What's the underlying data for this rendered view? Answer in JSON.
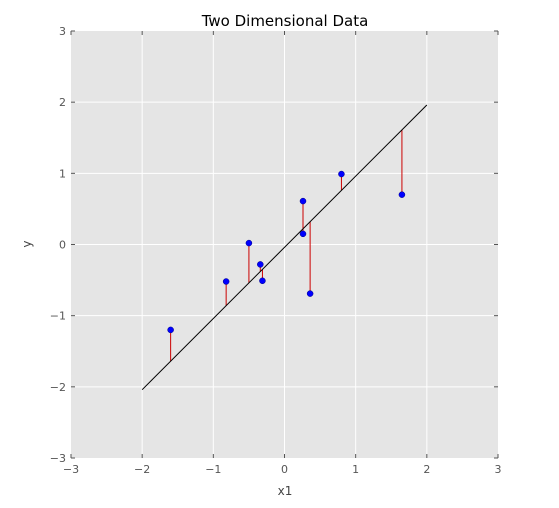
{
  "chart_data": {
    "type": "scatter",
    "title": "Two Dimensional Data",
    "xlabel": "x1",
    "ylabel": "y",
    "xlim": [
      -3,
      3
    ],
    "ylim": [
      -3,
      3
    ],
    "xticks": [
      -3,
      -2,
      -1,
      0,
      1,
      2,
      3
    ],
    "yticks": [
      -3,
      -2,
      -1,
      0,
      1,
      2,
      3
    ],
    "tick_labels_x": [
      "−3",
      "−2",
      "−1",
      "0",
      "1",
      "2",
      "3"
    ],
    "tick_labels_y": [
      "−3",
      "−2",
      "−1",
      "0",
      "1",
      "2",
      "3"
    ],
    "grid": true,
    "points": [
      {
        "x": -1.6,
        "y": -1.2
      },
      {
        "x": -0.82,
        "y": -0.52
      },
      {
        "x": -0.5,
        "y": 0.02
      },
      {
        "x": -0.34,
        "y": -0.28
      },
      {
        "x": -0.31,
        "y": -0.51
      },
      {
        "x": 0.26,
        "y": 0.61
      },
      {
        "x": 0.26,
        "y": 0.15
      },
      {
        "x": 0.36,
        "y": -0.69
      },
      {
        "x": 0.8,
        "y": 0.99
      },
      {
        "x": 1.65,
        "y": 0.7
      }
    ],
    "fit_line": {
      "x": [
        -2.0,
        2.0
      ],
      "y": [
        -2.04,
        1.96
      ]
    },
    "colors": {
      "points": "#0000ff",
      "fit_line": "#000000",
      "residuals": "#cc0000",
      "plot_background": "#e5e5e5",
      "grid": "#ffffff"
    }
  }
}
